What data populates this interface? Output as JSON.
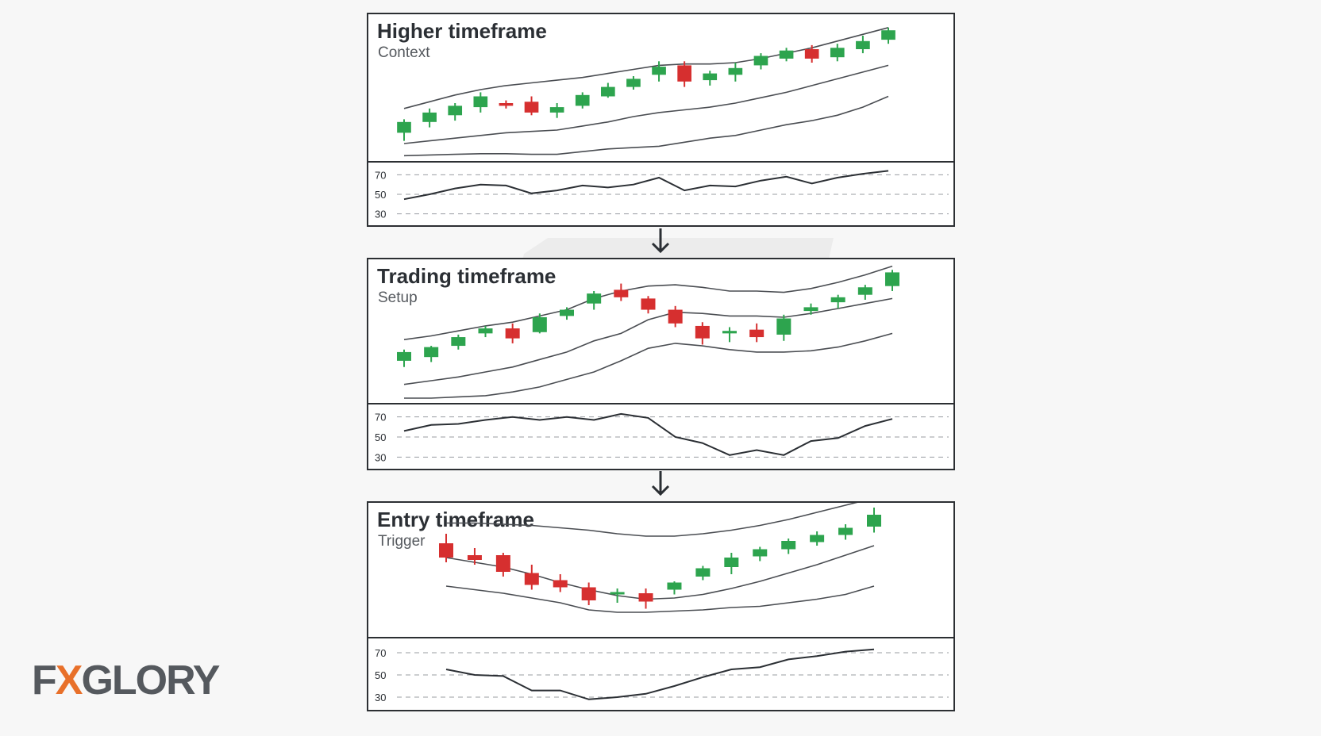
{
  "logo": {
    "text": "FXGLORY",
    "accent": "#e8702a",
    "color": "#55595e"
  },
  "colors": {
    "up": "#2da44e",
    "down": "#d62f2f",
    "band": "#4a4d52",
    "rsi": "#2b2f34"
  },
  "chart_data": [
    {
      "type": "candlestick",
      "title": "Higher timeframe",
      "subtitle": "Context",
      "rsi_ticks": [
        70,
        50,
        30
      ],
      "rsi_ylim": [
        20,
        80
      ],
      "price_ylim": [
        0,
        100
      ],
      "candles": [
        {
          "o": 18,
          "h": 28,
          "l": 12,
          "c": 26
        },
        {
          "o": 26,
          "h": 36,
          "l": 22,
          "c": 33
        },
        {
          "o": 31,
          "h": 40,
          "l": 27,
          "c": 38
        },
        {
          "o": 37,
          "h": 48,
          "l": 33,
          "c": 45
        },
        {
          "o": 40,
          "h": 42,
          "l": 36,
          "c": 38
        },
        {
          "o": 41,
          "h": 45,
          "l": 31,
          "c": 33
        },
        {
          "o": 33,
          "h": 40,
          "l": 29,
          "c": 37
        },
        {
          "o": 38,
          "h": 48,
          "l": 36,
          "c": 46
        },
        {
          "o": 45,
          "h": 55,
          "l": 44,
          "c": 52
        },
        {
          "o": 52,
          "h": 60,
          "l": 50,
          "c": 58
        },
        {
          "o": 61,
          "h": 71,
          "l": 56,
          "c": 67
        },
        {
          "o": 68,
          "h": 71,
          "l": 52,
          "c": 56
        },
        {
          "o": 57,
          "h": 64,
          "l": 53,
          "c": 62
        },
        {
          "o": 61,
          "h": 70,
          "l": 56,
          "c": 66
        },
        {
          "o": 68,
          "h": 77,
          "l": 65,
          "c": 75
        },
        {
          "o": 73,
          "h": 81,
          "l": 71,
          "c": 79
        },
        {
          "o": 80,
          "h": 83,
          "l": 70,
          "c": 73
        },
        {
          "o": 74,
          "h": 84,
          "l": 71,
          "c": 81
        },
        {
          "o": 80,
          "h": 90,
          "l": 77,
          "c": 86
        },
        {
          "o": 87,
          "h": 96,
          "l": 84,
          "c": 94
        }
      ],
      "upper_band": [
        36,
        41,
        46,
        50,
        53,
        55,
        57,
        59,
        62,
        65,
        68,
        69,
        69,
        70,
        73,
        77,
        81,
        86,
        91,
        96
      ],
      "middle_band": [
        10,
        12,
        14,
        16,
        18,
        19,
        20,
        23,
        26,
        30,
        33,
        35,
        37,
        40,
        44,
        48,
        53,
        58,
        63,
        68
      ],
      "lower_band": [
        1,
        1.5,
        2,
        2.5,
        2.5,
        2,
        2,
        4,
        6,
        7,
        8,
        11,
        14,
        16,
        20,
        24,
        27,
        31,
        37,
        45
      ],
      "rsi": [
        45,
        50,
        56,
        60,
        59,
        51,
        54,
        59,
        57,
        60,
        67,
        54,
        59,
        58,
        64,
        68,
        61,
        67,
        71,
        74
      ]
    },
    {
      "type": "candlestick",
      "title": "Trading timeframe",
      "subtitle": "Setup",
      "rsi_ticks": [
        70,
        50,
        30
      ],
      "rsi_ylim": [
        20,
        80
      ],
      "price_ylim": [
        0,
        100
      ],
      "candles": [
        {
          "o": 30,
          "h": 39,
          "l": 25,
          "c": 37
        },
        {
          "o": 33,
          "h": 42,
          "l": 29,
          "c": 41
        },
        {
          "o": 42,
          "h": 51,
          "l": 39,
          "c": 49
        },
        {
          "o": 52,
          "h": 58,
          "l": 49,
          "c": 56
        },
        {
          "o": 56,
          "h": 60,
          "l": 44,
          "c": 48
        },
        {
          "o": 53,
          "h": 68,
          "l": 52,
          "c": 65
        },
        {
          "o": 66,
          "h": 73,
          "l": 63,
          "c": 71
        },
        {
          "o": 76,
          "h": 86,
          "l": 71,
          "c": 84
        },
        {
          "o": 87,
          "h": 92,
          "l": 78,
          "c": 81
        },
        {
          "o": 80,
          "h": 82,
          "l": 68,
          "c": 71
        },
        {
          "o": 71,
          "h": 74,
          "l": 57,
          "c": 60
        },
        {
          "o": 58,
          "h": 61,
          "l": 43,
          "c": 48
        },
        {
          "o": 52,
          "h": 57,
          "l": 45,
          "c": 54
        },
        {
          "o": 55,
          "h": 60,
          "l": 45,
          "c": 49
        },
        {
          "o": 51,
          "h": 67,
          "l": 46,
          "c": 64
        },
        {
          "o": 70,
          "h": 76,
          "l": 67,
          "c": 73
        },
        {
          "o": 77,
          "h": 83,
          "l": 72,
          "c": 81
        },
        {
          "o": 83,
          "h": 91,
          "l": 79,
          "c": 89
        },
        {
          "o": 90,
          "h": 103,
          "l": 86,
          "c": 101
        }
      ],
      "upper_band": [
        47,
        50,
        54,
        58,
        61,
        66,
        71,
        80,
        86,
        90,
        91,
        89,
        86,
        86,
        85,
        88,
        93,
        99,
        106
      ],
      "middle_band": [
        11,
        14,
        17,
        21,
        25,
        31,
        37,
        46,
        52,
        63,
        69,
        68,
        66,
        66,
        65,
        68,
        72,
        76,
        80
      ],
      "lower_band": [
        0,
        0,
        1,
        2,
        5,
        9,
        15,
        21,
        30,
        40,
        44,
        42,
        39,
        37,
        37,
        38,
        41,
        46,
        52
      ],
      "rsi": [
        56,
        62,
        63,
        67,
        70,
        67,
        70,
        67,
        73,
        69,
        50,
        44,
        32,
        37,
        32,
        46,
        49,
        61,
        68
      ]
    },
    {
      "type": "candlestick",
      "title": "Entry timeframe",
      "subtitle": "Trigger",
      "rsi_ticks": [
        70,
        50,
        30
      ],
      "rsi_ylim": [
        20,
        80
      ],
      "price_ylim": [
        0,
        100
      ],
      "candles": [
        {
          "o": 76,
          "h": 84,
          "l": 60,
          "c": 64
        },
        {
          "o": 66,
          "h": 72,
          "l": 58,
          "c": 62
        },
        {
          "o": 66,
          "h": 68,
          "l": 48,
          "c": 52
        },
        {
          "o": 51,
          "h": 58,
          "l": 37,
          "c": 41
        },
        {
          "o": 45,
          "h": 50,
          "l": 35,
          "c": 39
        },
        {
          "o": 39,
          "h": 43,
          "l": 24,
          "c": 28
        },
        {
          "o": 33,
          "h": 38,
          "l": 26,
          "c": 35
        },
        {
          "o": 34,
          "h": 38,
          "l": 21,
          "c": 27
        },
        {
          "o": 37,
          "h": 44,
          "l": 33,
          "c": 43
        },
        {
          "o": 48,
          "h": 57,
          "l": 45,
          "c": 55
        },
        {
          "o": 56,
          "h": 68,
          "l": 50,
          "c": 64
        },
        {
          "o": 65,
          "h": 73,
          "l": 61,
          "c": 71
        },
        {
          "o": 71,
          "h": 80,
          "l": 67,
          "c": 78
        },
        {
          "o": 77,
          "h": 86,
          "l": 74,
          "c": 83
        },
        {
          "o": 83,
          "h": 92,
          "l": 79,
          "c": 89
        },
        {
          "o": 90,
          "h": 106,
          "l": 85,
          "c": 100
        }
      ],
      "upper_band": [
        93,
        93,
        92,
        91,
        89,
        87,
        84,
        82,
        82,
        84,
        87,
        91,
        96,
        102,
        108,
        114
      ],
      "middle_band": [
        64,
        60,
        56,
        50,
        43,
        37,
        32,
        29,
        30,
        33,
        38,
        44,
        51,
        58,
        66,
        74
      ],
      "lower_band": [
        40,
        37,
        34,
        30,
        26,
        20,
        18,
        18,
        19,
        20,
        22,
        23,
        26,
        29,
        33,
        40
      ],
      "rsi": [
        55,
        50,
        49,
        36,
        36,
        28,
        30,
        33,
        40,
        48,
        55,
        57,
        64,
        67,
        71,
        73
      ]
    }
  ]
}
